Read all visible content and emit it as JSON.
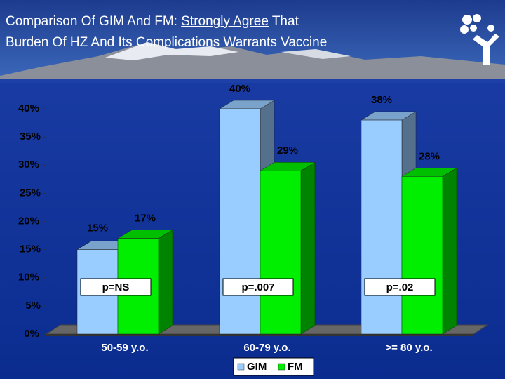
{
  "chart_data": {
    "type": "bar3d",
    "title_parts": [
      "Comparison Of GIM And FM: ",
      "Strongly Agree",
      " That",
      "Burden Of HZ And Its Complications Warrants Vaccine"
    ],
    "categories": [
      "50-59 y.o.",
      "60-79 y.o.",
      ">= 80 y.o."
    ],
    "series": [
      {
        "name": "GIM",
        "color": "#99ccff",
        "values": [
          15,
          40,
          38
        ],
        "value_labels": [
          "15%",
          "40%",
          "38%"
        ]
      },
      {
        "name": "FM",
        "color": "#00ee00",
        "values": [
          17,
          29,
          28
        ],
        "value_labels": [
          "17%",
          "29%",
          "28%"
        ]
      }
    ],
    "annotations": [
      "p=NS",
      "p=.007",
      "p=.02"
    ],
    "ylim": [
      0,
      40
    ],
    "yticks": [
      {
        "value": 0,
        "label": "0%"
      },
      {
        "value": 5,
        "label": "5%"
      },
      {
        "value": 10,
        "label": "10%"
      },
      {
        "value": 15,
        "label": "15%"
      },
      {
        "value": 20,
        "label": "20%"
      },
      {
        "value": 25,
        "label": "25%"
      },
      {
        "value": 30,
        "label": "30%"
      },
      {
        "value": 35,
        "label": "35%"
      },
      {
        "value": 40,
        "label": "40%"
      }
    ],
    "legend": "bottom"
  }
}
